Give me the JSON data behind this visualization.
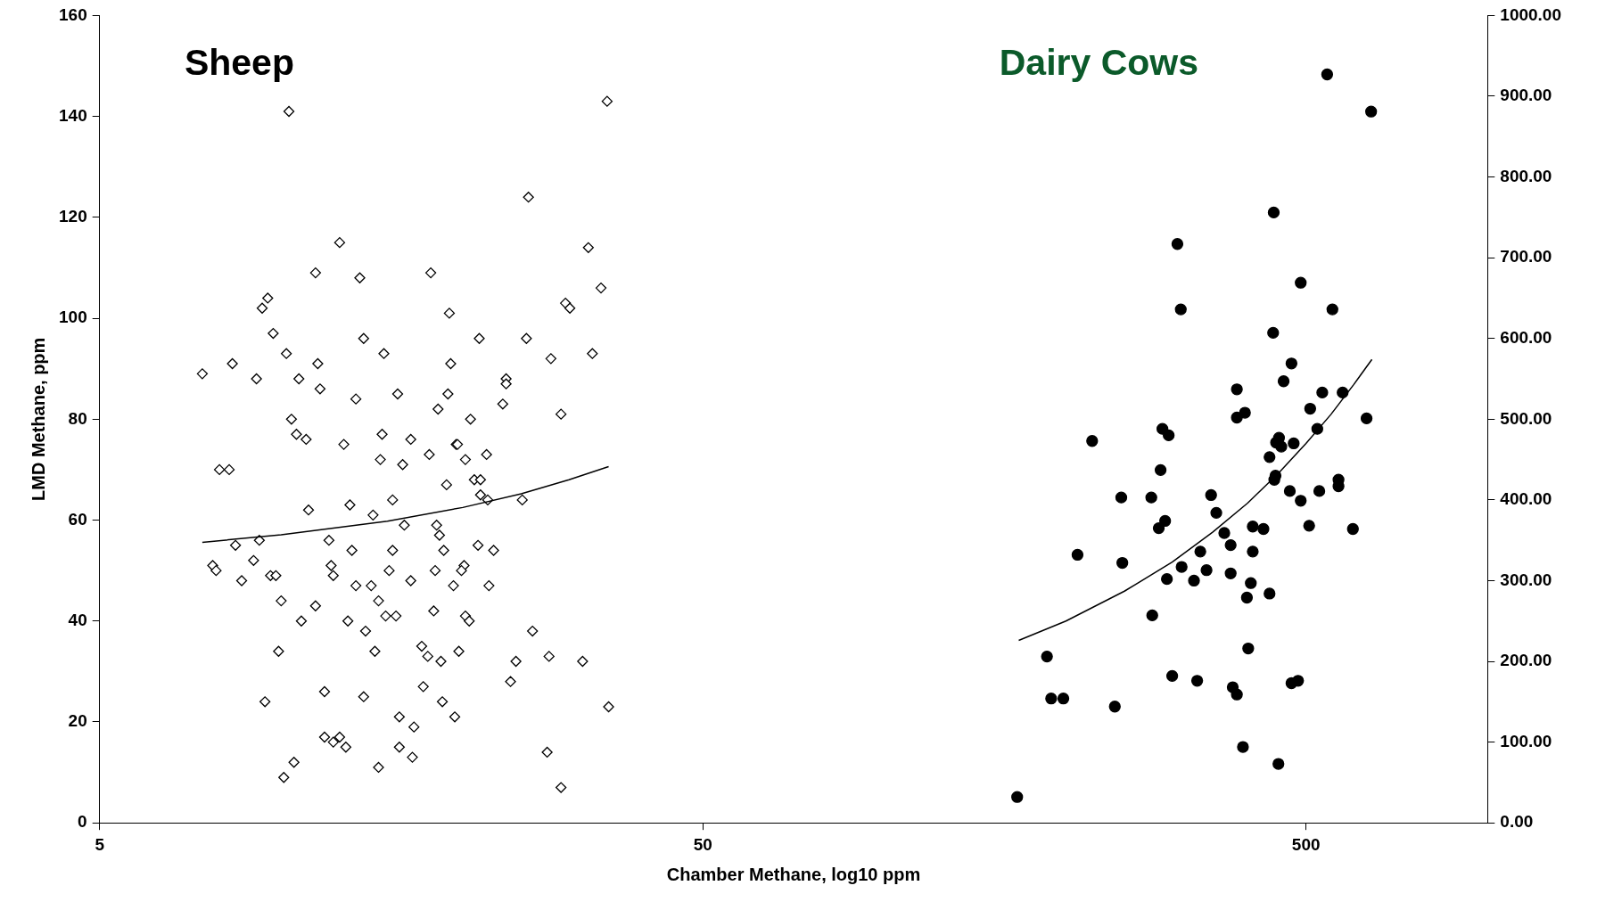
{
  "chart_data": {
    "type": "scatter",
    "annotations": [
      "Sheep",
      "Dairy Cows"
    ],
    "xlabel": "Chamber Methane, log10 ppm",
    "ylabel": "LMD Methane, ppm",
    "log": "x",
    "grid": false,
    "xlim": [
      5,
      1000
    ],
    "xticks": [
      5,
      50,
      500
    ],
    "ylim": [
      0,
      160
    ],
    "yticks": [
      0,
      20,
      40,
      60,
      80,
      100,
      120,
      140,
      160
    ],
    "y2lim": [
      0,
      1000
    ],
    "y2ticks": [
      {
        "value": 0,
        "label": "0.00"
      },
      {
        "value": 100,
        "label": "100.00"
      },
      {
        "value": 200,
        "label": "200.00"
      },
      {
        "value": 300,
        "label": "300.00"
      },
      {
        "value": 400,
        "label": "400.00"
      },
      {
        "value": 500,
        "label": "500.00"
      },
      {
        "value": 600,
        "label": "600.00"
      },
      {
        "value": 700,
        "label": "700.00"
      },
      {
        "value": 800,
        "label": "800.00"
      },
      {
        "value": 900,
        "label": "900.00"
      },
      {
        "value": 1000,
        "label": "1000.00"
      }
    ],
    "series": [
      {
        "type": "scatter",
        "axis": "y",
        "marker": "diamond",
        "color": "#000000",
        "x": [
          7.4,
          10.3,
          34.7,
          12.5,
          11.4,
          13.5,
          17.7,
          25.7,
          32.3,
          33.9,
          29.6,
          30.1,
          9.5,
          9.3,
          19.0,
          9.7,
          13.7,
          21.3,
          25.5,
          10.2,
          14.8,
          32.8,
          28.0,
          8.3,
          11.5,
          19.1,
          9.1,
          10.7,
          23.6,
          23.6,
          11.6,
          15.6,
          18.9,
          13.3,
          23.3,
          18.2,
          29.1,
          10.4,
          20.6,
          10.6,
          14.7,
          16.4,
          11.0,
          12.7,
          19.5,
          19.6,
          17.6,
          21.9,
          14.6,
          20.2,
          15.9,
          7.9,
          8.2,
          20.9,
          21.4,
          18.8,
          21.4,
          22.0,
          25.1,
          15.3,
          13.0,
          11.1,
          14.2,
          16.0,
          18.1,
          18.3,
          9.2,
          12.0,
          8.4,
          21.2,
          22.5,
          13.1,
          15.3,
          18.6,
          9.0,
          20.1,
          19.9,
          7.7,
          7.8,
          12.1,
          15.1,
          18.0,
          12.2,
          9.6,
          9.8,
          16.4,
          8.6,
          19.3,
          22.1,
          13.3,
          14.1,
          14.5,
          10.0,
          11.4,
          17.9,
          14.9,
          20.2,
          20.5,
          12.9,
          15.5,
          10.8,
          13.8,
          26.1,
          17.1,
          9.9,
          14.3,
          19.7,
          17.5,
          27.8,
          24.5,
          18.4,
          31.6,
          24.0,
          17.2,
          11.8,
          13.7,
          18.5,
          9.4,
          34.9,
          19.4,
          15.7,
          16.6,
          11.8,
          12.5,
          12.2,
          15.7,
          12.8,
          27.6,
          16.5,
          10.5,
          14.5,
          10.1,
          29.1
        ],
        "values": [
          89,
          141,
          143,
          115,
          109,
          108,
          109,
          124,
          114,
          106,
          103,
          102,
          104,
          102,
          101,
          97,
          96,
          96,
          96,
          93,
          93,
          93,
          92,
          91,
          91,
          91,
          88,
          88,
          88,
          87,
          86,
          85,
          85,
          84,
          83,
          82,
          81,
          80,
          80,
          77,
          77,
          76,
          76,
          75,
          75,
          75,
          73,
          73,
          72,
          72,
          71,
          70,
          70,
          68,
          68,
          67,
          65,
          64,
          64,
          64,
          63,
          62,
          61,
          59,
          59,
          57,
          56,
          56,
          55,
          55,
          54,
          54,
          54,
          54,
          52,
          51,
          50,
          51,
          50,
          51,
          50,
          50,
          49,
          49,
          49,
          48,
          48,
          47,
          47,
          47,
          47,
          44,
          44,
          43,
          42,
          41,
          41,
          40,
          40,
          41,
          40,
          38,
          38,
          35,
          34,
          34,
          34,
          33,
          33,
          32,
          32,
          32,
          28,
          27,
          26,
          25,
          24,
          24,
          23,
          21,
          21,
          19,
          17,
          17,
          16,
          15,
          15,
          14,
          13,
          12,
          11,
          9,
          7
        ]
      },
      {
        "type": "scatter",
        "axis": "y2",
        "marker": "circle",
        "color": "#000000",
        "x": [
          542,
          641,
          442,
          306,
          310,
          490,
          553,
          441,
          473,
          459,
          384,
          532,
          575,
          396,
          384,
          508,
          630,
          522,
          289,
          296,
          221,
          446,
          477,
          451,
          455,
          435,
          287,
          445,
          443,
          566,
          566,
          470,
          526,
          348,
          277,
          247,
          490,
          355,
          292,
          506,
          408,
          598,
          285,
          425,
          366,
          375,
          408,
          334,
          209,
          248,
          311,
          342,
          375,
          294,
          326,
          405,
          435,
          399,
          278,
          401,
          186,
          300,
          330,
          378,
          485,
          473,
          384,
          189,
          198,
          241,
          393,
          450,
          166
        ],
        "values": [
          927,
          881,
          756,
          717,
          636,
          669,
          636,
          607,
          569,
          547,
          537,
          533,
          533,
          508,
          502,
          513,
          501,
          488,
          488,
          480,
          473,
          471,
          470,
          477,
          466,
          453,
          437,
          430,
          425,
          425,
          417,
          411,
          411,
          406,
          403,
          403,
          399,
          384,
          374,
          368,
          367,
          364,
          365,
          364,
          359,
          344,
          336,
          336,
          332,
          322,
          317,
          313,
          309,
          302,
          300,
          297,
          284,
          279,
          257,
          216,
          206,
          182,
          176,
          168,
          176,
          173,
          159,
          154,
          154,
          144,
          94,
          73,
          32
        ]
      },
      {
        "type": "line",
        "axis": "y",
        "marker": "none",
        "color": "#000000",
        "x": [
          7.4,
          10,
          15,
          20,
          25,
          30,
          34.9
        ],
        "values": [
          55.6,
          57.1,
          59.8,
          62.5,
          65.2,
          68.0,
          70.6
        ]
      },
      {
        "type": "line",
        "axis": "y2",
        "marker": "none",
        "color": "#000000",
        "x": [
          167,
          200,
          250,
          300,
          350,
          400,
          450,
          500,
          550,
          600,
          643
        ],
        "values": [
          226,
          250,
          287,
          323,
          360,
          396,
          433,
          470,
          506,
          543,
          574
        ]
      }
    ]
  }
}
